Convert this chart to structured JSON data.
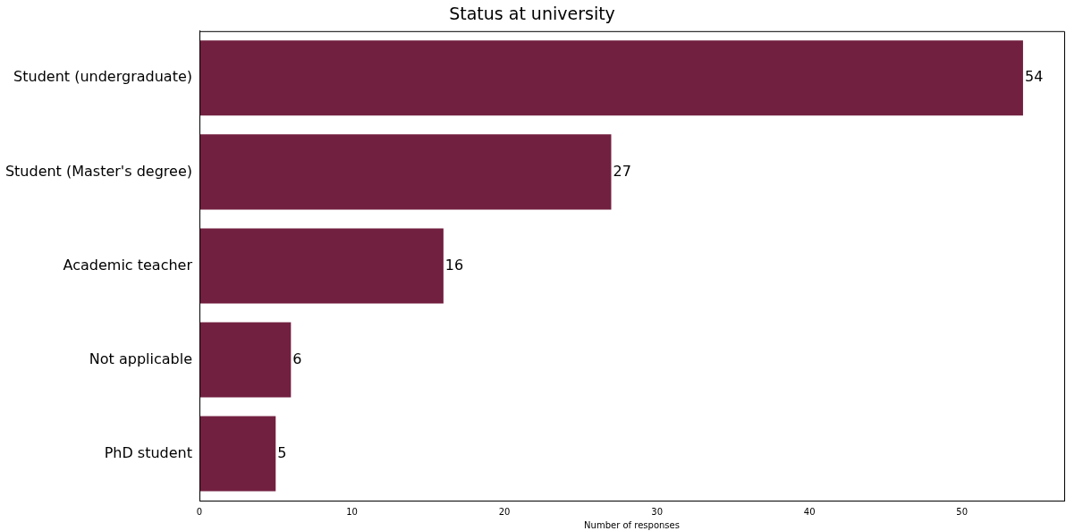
{
  "chart_data": {
    "type": "bar",
    "orientation": "horizontal",
    "title": "Status at university",
    "xlabel": "Number of responses",
    "categories": [
      "Student (undergraduate)",
      "Student (Master's degree)",
      "Academic teacher",
      "Not applicable",
      "PhD student"
    ],
    "values": [
      54,
      27,
      16,
      6,
      5
    ],
    "color": "#722040",
    "xlim": [
      0,
      56.7
    ],
    "xticks": [
      0,
      10,
      20,
      30,
      40,
      50
    ],
    "grid": false,
    "legend": false,
    "data_labels": true
  }
}
